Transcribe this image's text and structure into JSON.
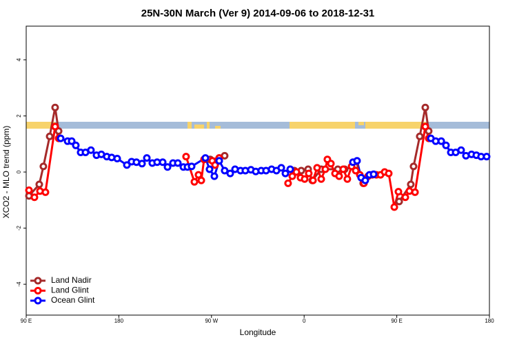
{
  "chart_data": {
    "type": "line",
    "title": "25N-30N March (Ver 9)   2014-09-06 to 2018-12-31",
    "x_label": "Longitude",
    "y_label": "XCO2 - MLO trend (ppm)",
    "xlim": [
      90,
      540
    ],
    "ylim": [
      -5.1,
      5.2
    ],
    "xticks": [
      {
        "value": 90,
        "label": "90 E"
      },
      180,
      {
        "value": 270,
        "label": "90 W"
      },
      {
        "value": 360,
        "label": "0"
      },
      {
        "value": 450,
        "label": "90 E"
      },
      {
        "value": 540,
        "label": "180"
      }
    ],
    "yticks": [
      -4,
      -2,
      0,
      2,
      4
    ],
    "legend": "bottom-left",
    "series": [
      {
        "name": "Land Nadir",
        "color": "#a52a2a",
        "x": [
          92.7,
          102.7,
          106.7,
          112.8,
          118.1,
          121.5,
          null,
          268.8,
          277.5,
          282.8,
          null,
          350.5,
          357.2,
          363.9,
          367.9,
          376.6,
          392.7,
          399.4,
          409.4,
          417.4,
          null,
          452.3,
          463.6,
          466.3,
          472.3,
          477.7,
          481.0
        ],
        "values": [
          -0.85,
          -0.44,
          0.2,
          1.27,
          2.3,
          1.46,
          null,
          0.45,
          0.5,
          0.58,
          null,
          0.05,
          0.05,
          0.1,
          -0.3,
          0.1,
          0.1,
          0.1,
          0.2,
          -0.4,
          null,
          -1.05,
          -0.44,
          0.2,
          1.27,
          2.3,
          1.46
        ]
      },
      {
        "name": "Land Glint",
        "color": "#ff0000",
        "x": [
          92.7,
          98.0,
          103.4,
          108.7,
          118.1,
          121.5,
          null,
          245.3,
          253.4,
          257.4,
          260.1,
          262.8,
          270.8,
          273.5,
          277.5,
          null,
          344.4,
          348.5,
          352.5,
          356.5,
          360.5,
          364.5,
          368.6,
          372.6,
          376.6,
          380.6,
          382.6,
          386.0,
          390.0,
          394.0,
          398.0,
          402.0,
          406.1,
          410.1,
          414.1,
          418.1,
          422.1,
          426.1,
          430.2,
          434.2,
          438.2,
          442.2,
          447.6,
          451.6,
          458.3,
          462.3,
          467.7,
          477.7,
          481.0
        ],
        "values": [
          -0.65,
          -0.9,
          -0.68,
          -0.72,
          1.62,
          1.2,
          null,
          0.55,
          -0.35,
          -0.1,
          -0.3,
          0.45,
          0.4,
          0.25,
          0.5,
          null,
          -0.4,
          -0.15,
          0.0,
          -0.2,
          -0.25,
          -0.05,
          -0.3,
          0.15,
          -0.25,
          0.1,
          0.45,
          0.3,
          -0.05,
          -0.15,
          0.1,
          -0.25,
          0.2,
          0.05,
          -0.1,
          -0.4,
          -0.15,
          -0.1,
          -0.1,
          -0.1,
          0.0,
          -0.05,
          -1.25,
          -0.7,
          -0.9,
          -0.68,
          -0.72,
          1.62,
          1.2
        ]
      },
      {
        "name": "Ocean Glint",
        "color": "#0000ff",
        "x": [
          123.5,
          130.2,
          134.2,
          138.2,
          142.9,
          147.6,
          152.9,
          158.3,
          163.0,
          168.3,
          173.0,
          178.4,
          187.8,
          192.4,
          197.1,
          202.5,
          207.2,
          212.5,
          217.2,
          222.6,
          227.3,
          232.6,
          237.3,
          242.7,
          246.7,
          250.7,
          264.1,
          268.1,
          272.8,
          277.5,
          282.8,
          288.2,
          292.9,
          298.2,
          302.9,
          308.3,
          313.0,
          318.3,
          323.0,
          328.4,
          333.1,
          337.8,
          341.8,
          346.5,
          null,
          407.4,
          411.4,
          415.4,
          419.4,
          423.5,
          427.5,
          null,
          483.1,
          487.8,
          493.2,
          497.8,
          502.5,
          507.2,
          512.5,
          517.2,
          522.6,
          527.3,
          531.9,
          537.3
        ],
        "values": [
          1.2,
          1.1,
          1.1,
          0.95,
          0.7,
          0.7,
          0.78,
          0.6,
          0.63,
          0.55,
          0.52,
          0.48,
          0.25,
          0.37,
          0.35,
          0.3,
          0.5,
          0.32,
          0.35,
          0.35,
          0.18,
          0.32,
          0.32,
          0.18,
          0.18,
          0.2,
          0.5,
          0.1,
          -0.15,
          0.4,
          0.05,
          -0.05,
          0.1,
          0.05,
          0.05,
          0.08,
          0.02,
          0.05,
          0.05,
          0.1,
          0.05,
          0.15,
          -0.05,
          0.1,
          null,
          0.35,
          0.4,
          -0.2,
          -0.3,
          -0.1,
          -0.08,
          null,
          1.2,
          1.1,
          1.1,
          0.95,
          0.7,
          0.7,
          0.78,
          0.58,
          0.63,
          0.6,
          0.55,
          0.55
        ]
      }
    ]
  }
}
